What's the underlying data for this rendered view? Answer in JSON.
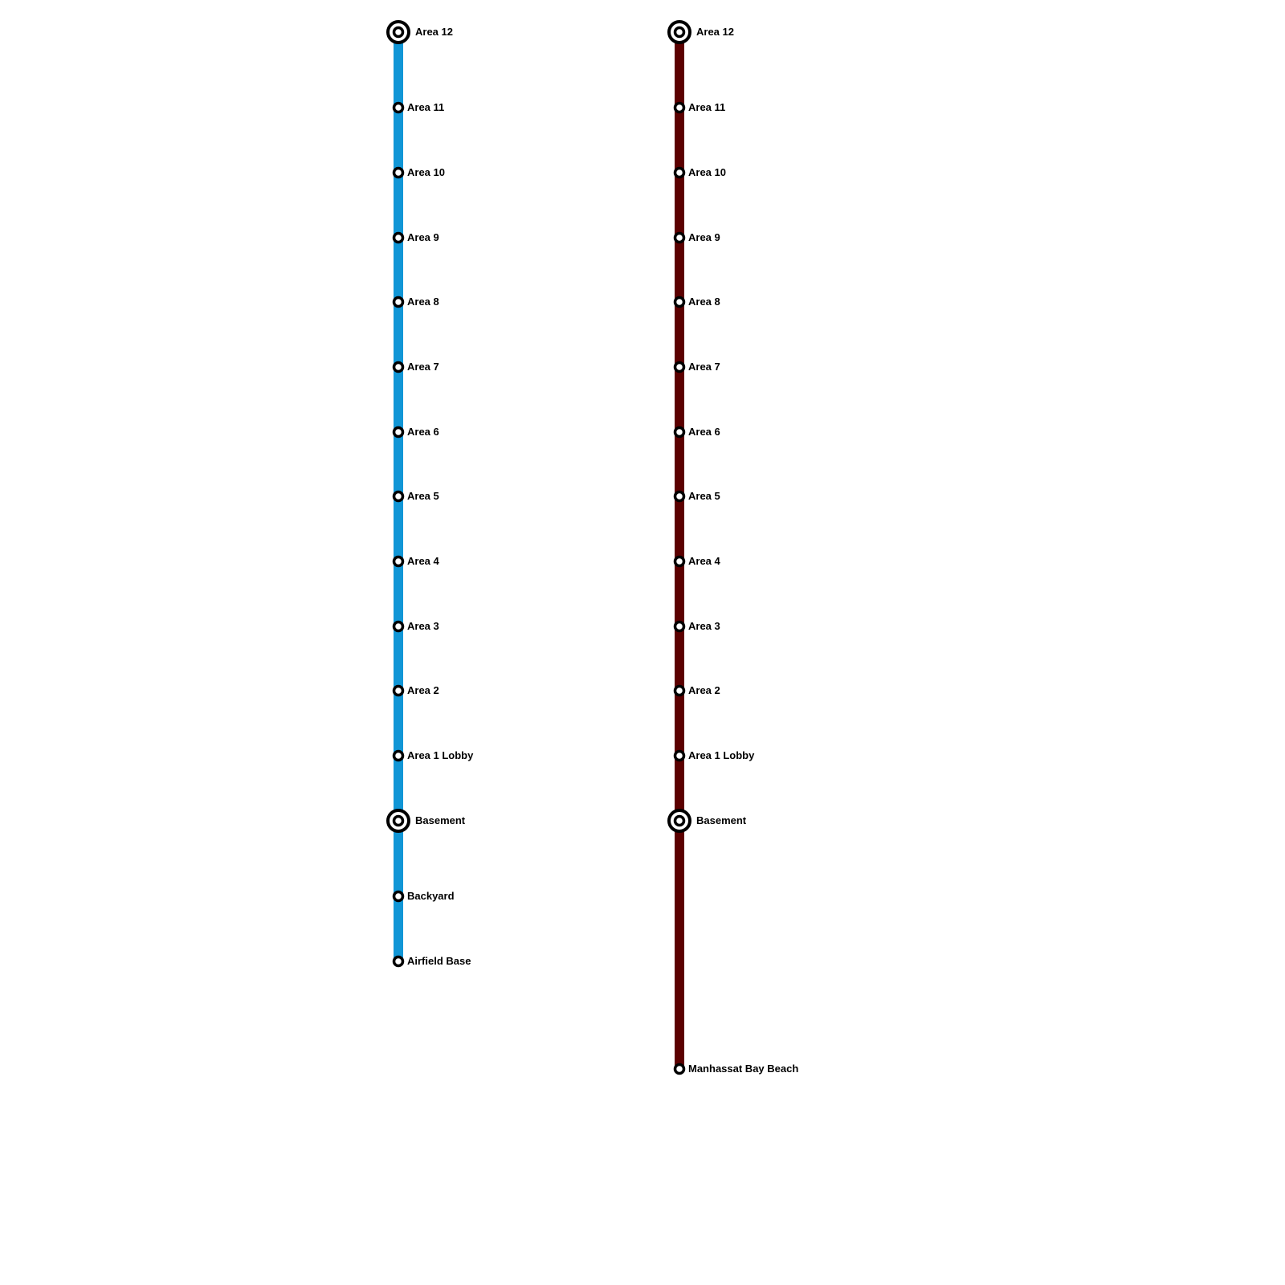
{
  "lines": [
    {
      "color": "#1196d6",
      "stations": [
        {
          "name": "Area 12",
          "type": "interchange"
        },
        {
          "name": "Area 11",
          "type": "stop"
        },
        {
          "name": "Area 10",
          "type": "stop"
        },
        {
          "name": "Area 9",
          "type": "stop"
        },
        {
          "name": "Area 8",
          "type": "stop"
        },
        {
          "name": "Area 7",
          "type": "stop"
        },
        {
          "name": "Area 6",
          "type": "stop"
        },
        {
          "name": "Area 5",
          "type": "stop"
        },
        {
          "name": "Area 4",
          "type": "stop"
        },
        {
          "name": "Area 3",
          "type": "stop"
        },
        {
          "name": "Area 2",
          "type": "stop"
        },
        {
          "name": "Area 1 Lobby",
          "type": "stop"
        },
        {
          "name": "Basement",
          "type": "interchange"
        },
        {
          "name": "Backyard",
          "type": "stop"
        },
        {
          "name": "Airfield Base",
          "type": "stop"
        }
      ]
    },
    {
      "color": "#5c0000",
      "stations": [
        {
          "name": "Area 12",
          "type": "interchange"
        },
        {
          "name": "Area 11",
          "type": "stop"
        },
        {
          "name": "Area 10",
          "type": "stop"
        },
        {
          "name": "Area 9",
          "type": "stop"
        },
        {
          "name": "Area 8",
          "type": "stop"
        },
        {
          "name": "Area 7",
          "type": "stop"
        },
        {
          "name": "Area 6",
          "type": "stop"
        },
        {
          "name": "Area 5",
          "type": "stop"
        },
        {
          "name": "Area 4",
          "type": "stop"
        },
        {
          "name": "Area 3",
          "type": "stop"
        },
        {
          "name": "Area 2",
          "type": "stop"
        },
        {
          "name": "Area 1 Lobby",
          "type": "stop"
        },
        {
          "name": "Basement",
          "type": "interchange"
        },
        {
          "name": "Manhassat Bay Beach",
          "type": "stop"
        }
      ]
    }
  ]
}
